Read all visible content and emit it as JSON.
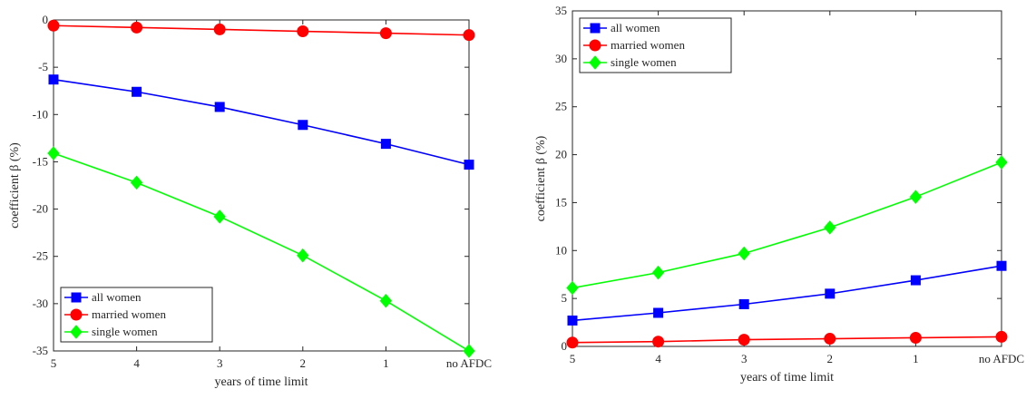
{
  "chart_data": [
    {
      "type": "line",
      "categories": [
        "5",
        "4",
        "3",
        "2",
        "1",
        "no AFDC"
      ],
      "xlabel": "years of time limit",
      "ylabel": "coefficient β (%)",
      "ylim": [
        -35,
        0
      ],
      "yticks": [
        "0",
        "-5",
        "-10",
        "-15",
        "-20",
        "-25",
        "-30",
        "-35"
      ],
      "ytick_values": [
        0,
        -5,
        -10,
        -15,
        -20,
        -25,
        -30,
        -35
      ],
      "grid": false,
      "legend_position": "bottom-left",
      "series": [
        {
          "name": "all women",
          "color": "#0000ff",
          "marker": "square",
          "values": [
            -6.3,
            -7.6,
            -9.2,
            -11.1,
            -13.1,
            -15.3
          ]
        },
        {
          "name": "married women",
          "color": "#ff0000",
          "marker": "circle",
          "values": [
            -0.6,
            -0.8,
            -1.0,
            -1.2,
            -1.4,
            -1.6
          ]
        },
        {
          "name": "single women",
          "color": "#00ff00",
          "marker": "diamond",
          "values": [
            -14.1,
            -17.2,
            -20.8,
            -24.9,
            -29.7,
            -35.0
          ]
        }
      ]
    },
    {
      "type": "line",
      "categories": [
        "5",
        "4",
        "3",
        "2",
        "1",
        "no AFDC"
      ],
      "xlabel": "years of time limit",
      "ylabel": "coefficient β (%)",
      "ylim": [
        0,
        35
      ],
      "yticks": [
        "0",
        "5",
        "10",
        "15",
        "20",
        "25",
        "30",
        "35"
      ],
      "ytick_values": [
        0,
        5,
        10,
        15,
        20,
        25,
        30,
        35
      ],
      "grid": false,
      "legend_position": "top-left",
      "series": [
        {
          "name": "all women",
          "color": "#0000ff",
          "marker": "square",
          "values": [
            2.7,
            3.5,
            4.4,
            5.5,
            6.9,
            8.4
          ]
        },
        {
          "name": "married women",
          "color": "#ff0000",
          "marker": "circle",
          "values": [
            0.4,
            0.5,
            0.7,
            0.8,
            0.9,
            1.0
          ]
        },
        {
          "name": "single women",
          "color": "#00ff00",
          "marker": "diamond",
          "values": [
            6.1,
            7.7,
            9.7,
            12.4,
            15.6,
            19.2
          ]
        }
      ]
    }
  ]
}
